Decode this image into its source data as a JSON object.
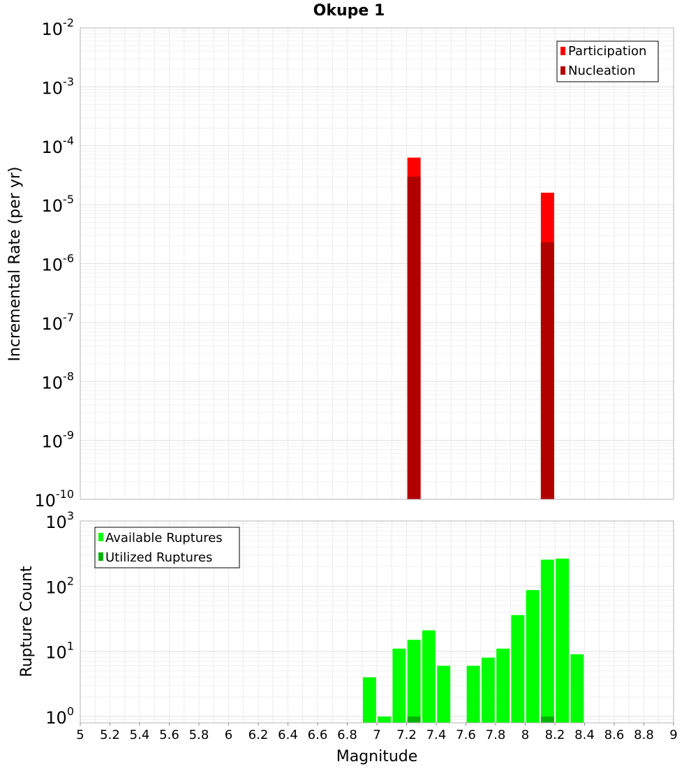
{
  "chart_data": [
    {
      "type": "bar",
      "title": "Okupe 1",
      "xlabel": "",
      "ylabel": "Incremental Rate (per yr)",
      "yscale": "log",
      "ylim": [
        1e-10,
        0.01
      ],
      "xlim": [
        5,
        9
      ],
      "grid": true,
      "legend_position": "top-right",
      "y_ticks": [
        {
          "base": "10",
          "exp": "-10"
        },
        {
          "base": "10",
          "exp": "-9"
        },
        {
          "base": "10",
          "exp": "-8"
        },
        {
          "base": "10",
          "exp": "-7"
        },
        {
          "base": "10",
          "exp": "-6"
        },
        {
          "base": "10",
          "exp": "-5"
        },
        {
          "base": "10",
          "exp": "-4"
        },
        {
          "base": "10",
          "exp": "-3"
        },
        {
          "base": "10",
          "exp": "-2"
        }
      ],
      "series": [
        {
          "name": "Participation",
          "color": "#ff0000",
          "points": [
            {
              "x": 7.25,
              "y": 6.3e-05
            },
            {
              "x": 8.15,
              "y": 1.6e-05
            }
          ]
        },
        {
          "name": "Nucleation",
          "color": "#b00000",
          "points": [
            {
              "x": 7.25,
              "y": 3e-05
            },
            {
              "x": 8.15,
              "y": 2.3e-06
            }
          ]
        }
      ]
    },
    {
      "type": "bar",
      "title": "",
      "xlabel": "Magnitude",
      "ylabel": "Rupture Count",
      "yscale": "log",
      "ylim": [
        0.8,
        1000
      ],
      "xlim": [
        5,
        9
      ],
      "grid": true,
      "legend_position": "top-left",
      "x_ticks": [
        "5",
        "5.2",
        "5.4",
        "5.6",
        "5.8",
        "6",
        "6.2",
        "6.4",
        "6.6",
        "6.8",
        "7",
        "7.2",
        "7.4",
        "7.6",
        "7.8",
        "8",
        "8.2",
        "8.4",
        "8.6",
        "8.8",
        "9"
      ],
      "y_ticks": [
        {
          "base": "10",
          "exp": "0"
        },
        {
          "base": "10",
          "exp": "1"
        },
        {
          "base": "10",
          "exp": "2"
        },
        {
          "base": "10",
          "exp": "3"
        }
      ],
      "series": [
        {
          "name": "Available Ruptures",
          "color": "#00ff00",
          "points": [
            {
              "x": 6.95,
              "y": 4
            },
            {
              "x": 7.05,
              "y": 1
            },
            {
              "x": 7.15,
              "y": 11
            },
            {
              "x": 7.25,
              "y": 15
            },
            {
              "x": 7.35,
              "y": 21
            },
            {
              "x": 7.45,
              "y": 6
            },
            {
              "x": 7.65,
              "y": 6
            },
            {
              "x": 7.75,
              "y": 8
            },
            {
              "x": 7.85,
              "y": 11
            },
            {
              "x": 7.95,
              "y": 36
            },
            {
              "x": 8.05,
              "y": 87
            },
            {
              "x": 8.15,
              "y": 255
            },
            {
              "x": 8.25,
              "y": 265
            },
            {
              "x": 8.35,
              "y": 9
            }
          ]
        },
        {
          "name": "Utilized Ruptures",
          "color": "#00b400",
          "points": [
            {
              "x": 7.25,
              "y": 1
            },
            {
              "x": 8.15,
              "y": 1
            }
          ]
        }
      ]
    }
  ]
}
